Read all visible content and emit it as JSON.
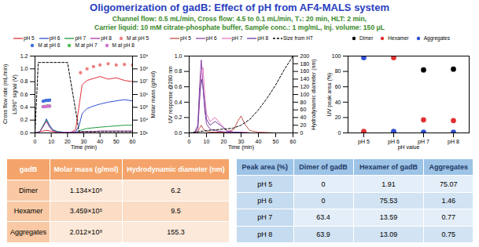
{
  "title": "Oligomerization of gadB: Effect of pH from AF4-MALS system",
  "subtitle": [
    "Channel flow: 0.5 mL/min, Cross flow: 4.5 to 0.1 mL/min, T₁: 20 min, HLT: 2 min,",
    "Carrier liquid: 10 mM citrate-phosphate buffer, Sample conc.: 1 mg/mL, Inj. volume: 150 μL"
  ],
  "chart_data": [
    {
      "type": "line",
      "xlabel": "Time (min)",
      "ylabels": [
        "Cross flow rate (mL/min)",
        "LS90° signal (V)"
      ],
      "y2label": "Molar mass (g/mol)",
      "xlim": [
        0,
        60
      ],
      "xticks": [
        0,
        10,
        20,
        30,
        40,
        50,
        60
      ],
      "ylim": [
        0,
        1.2
      ],
      "yticks": [
        {
          "value": 0,
          "label": "0.0"
        },
        0.2,
        0.4,
        0.6,
        0.8,
        {
          "value": 1,
          "label": "1.0"
        },
        1.2
      ],
      "y2lim": [
        1000,
        1000000000
      ],
      "y2ticks": [
        {
          "value": 1000,
          "label": "10³"
        },
        {
          "value": 10000,
          "label": "10⁴"
        },
        {
          "value": 100000,
          "label": "10⁵"
        },
        {
          "value": 1000000,
          "label": "10⁶"
        },
        {
          "value": 10000000,
          "label": "10⁷"
        },
        {
          "value": 100000000,
          "label": "10⁸"
        },
        {
          "value": 1000000000,
          "label": "10⁹"
        }
      ],
      "log": "y2",
      "legend": "top",
      "series": [
        {
          "name": "pH 5",
          "color": "#e0303a",
          "type": "line",
          "x": [
            0,
            3,
            5,
            7,
            9,
            11,
            14,
            18,
            22,
            25,
            27,
            29,
            32,
            36,
            40,
            45,
            50,
            55,
            60
          ],
          "values": [
            0,
            0.02,
            0.03,
            0.04,
            0.03,
            0.02,
            0.01,
            0.01,
            0.01,
            0.05,
            0.4,
            0.75,
            0.82,
            0.85,
            0.88,
            0.84,
            0.86,
            0.82,
            0.8
          ]
        },
        {
          "name": "pH 6",
          "color": "#2f4fd0",
          "type": "line",
          "x": [
            0,
            3,
            5,
            7,
            9,
            11,
            14,
            18,
            22,
            25,
            27,
            29,
            32,
            36,
            40,
            45,
            50,
            55,
            60
          ],
          "values": [
            0,
            0.02,
            0.1,
            0.22,
            0.12,
            0.05,
            0.02,
            0.01,
            0.01,
            0.02,
            0.1,
            0.3,
            0.38,
            0.42,
            0.45,
            0.48,
            0.5,
            0.52,
            0.5
          ]
        },
        {
          "name": "pH 7",
          "color": "#1f9a3f",
          "type": "line",
          "x": [
            0,
            3,
            5,
            7,
            9,
            11,
            14,
            18,
            22,
            25,
            27,
            29,
            32,
            36,
            40,
            45,
            50,
            55,
            60
          ],
          "values": [
            0,
            0.02,
            0.12,
            0.2,
            0.1,
            0.04,
            0.02,
            0.01,
            0.01,
            0.01,
            0.03,
            0.05,
            0.07,
            0.08,
            0.09,
            0.1,
            0.11,
            0.12,
            0.12
          ]
        },
        {
          "name": "pH 8",
          "color": "#b030b0",
          "type": "line",
          "x": [
            0,
            3,
            5,
            7,
            9,
            11,
            14,
            18,
            22,
            25,
            27,
            29,
            32,
            36,
            40,
            45,
            50,
            55,
            60
          ],
          "values": [
            0,
            0.02,
            0.1,
            0.18,
            0.09,
            0.03,
            0.01,
            0.01,
            0.01,
            0.01,
            0.01,
            0.02,
            0.02,
            0.02,
            0.03,
            0.03,
            0.03,
            0.03,
            0.03
          ]
        },
        {
          "color": "#000000",
          "type": "line",
          "line_style": "dashed",
          "x": [
            0,
            2,
            20,
            22,
            24,
            26,
            27,
            60
          ],
          "values": [
            0,
            1.1,
            1.1,
            0.8,
            0.5,
            0.2,
            0.02,
            0.02
          ]
        },
        {
          "name": "M at pH 5",
          "color": "#f08080",
          "type": "scatter",
          "marker": "circle",
          "axis": "y2",
          "x": [
            28,
            32,
            36,
            40,
            45,
            50,
            55,
            60
          ],
          "values": [
            50000000,
            100000000,
            150000000,
            200000000,
            250000000,
            200000000,
            220000000,
            200000000
          ]
        },
        {
          "name": "M at pH 6",
          "color": "#3f6fe0",
          "type": "scatter",
          "marker": "circle",
          "axis": "y2",
          "x": [
            5,
            6,
            7,
            8,
            9
          ],
          "values": [
            300000,
            320000,
            350000,
            340000,
            360000
          ]
        },
        {
          "name": "M at pH 7",
          "color": "#50c050",
          "type": "scatter",
          "marker": "circle",
          "axis": "y2",
          "x": [
            5,
            6,
            7,
            8,
            9
          ],
          "values": [
            110000,
            120000,
            115000,
            130000,
            120000
          ]
        },
        {
          "name": "M at pH 8",
          "color": "#d070d0",
          "type": "scatter",
          "marker": "circle",
          "axis": "y2",
          "x": [
            5,
            6,
            7,
            8,
            9
          ],
          "values": [
            110000,
            110000,
            120000,
            120000,
            125000
          ]
        }
      ]
    },
    {
      "type": "line",
      "xlabel": "Time (min)",
      "ylabels": [
        "UV response @280 nm"
      ],
      "y2label": "Hydrodynamic diameter (nm)",
      "xlim": [
        0,
        60
      ],
      "xticks": [
        0,
        10,
        20,
        30,
        40,
        50,
        60
      ],
      "ylim": [
        0,
        1
      ],
      "yticks": [
        {
          "value": 0,
          "label": "0.0"
        },
        0.2,
        0.4,
        0.6,
        0.8,
        {
          "value": 1,
          "label": "1.0"
        }
      ],
      "y2lim": [
        0,
        200
      ],
      "y2ticks": [
        0,
        20,
        40,
        60,
        80,
        100,
        120,
        140,
        160,
        180,
        200
      ],
      "legend": "top",
      "series": [
        {
          "name": "pH 5",
          "color": "#c0504d",
          "type": "line",
          "x": [
            0,
            3,
            5,
            6,
            7,
            8,
            9,
            10,
            12,
            15,
            18,
            22,
            26,
            28,
            30,
            32,
            35,
            40,
            50,
            60
          ],
          "values": [
            0,
            0,
            0.02,
            0.06,
            0.1,
            0.06,
            0.03,
            0.02,
            0.01,
            0.01,
            0.01,
            0.01,
            0.05,
            0.15,
            0.22,
            0.12,
            0.03,
            0.01,
            0,
            0
          ]
        },
        {
          "name": "pH 6",
          "color": "#8e44ad",
          "type": "line",
          "x": [
            0,
            3,
            5,
            6,
            7,
            8,
            9,
            10,
            12,
            15,
            18,
            22,
            26,
            28,
            30,
            32,
            35,
            40,
            50,
            60
          ],
          "values": [
            0,
            0,
            0.1,
            0.6,
            0.95,
            0.6,
            0.3,
            0.12,
            0.05,
            0.03,
            0.02,
            0.01,
            0.01,
            0.01,
            0.01,
            0.01,
            0,
            0,
            0,
            0
          ]
        },
        {
          "name": "pH 7",
          "color": "#e377c2",
          "type": "line",
          "x": [
            0,
            3,
            5,
            6,
            7,
            8,
            9,
            10,
            12,
            15,
            18,
            22,
            26,
            28,
            30,
            32,
            35,
            40,
            50,
            60
          ],
          "values": [
            0,
            0,
            0.05,
            0.4,
            0.8,
            0.85,
            0.5,
            0.25,
            0.15,
            0.2,
            0.12,
            0.03,
            0.01,
            0.01,
            0.01,
            0.01,
            0,
            0,
            0,
            0
          ]
        },
        {
          "name": "pH 8",
          "color": "#6a3d9a",
          "type": "line",
          "x": [
            0,
            3,
            5,
            6,
            7,
            8,
            9,
            10,
            12,
            15,
            18,
            22,
            26,
            28,
            30,
            32,
            35,
            40,
            50,
            60
          ],
          "values": [
            0,
            0,
            0.06,
            0.45,
            0.7,
            0.6,
            0.35,
            0.18,
            0.1,
            0.15,
            0.1,
            0.02,
            0.01,
            0.01,
            0.01,
            0,
            0,
            0,
            0,
            0
          ]
        },
        {
          "name": "Size from HT",
          "color": "#000000",
          "type": "line",
          "line_style": "dashed",
          "axis": "y2",
          "x": [
            0,
            5,
            10,
            15,
            20,
            25,
            30,
            35,
            40,
            45,
            50,
            55,
            60
          ],
          "values": [
            0,
            3,
            6,
            8,
            10,
            12,
            20,
            35,
            60,
            90,
            125,
            165,
            200
          ]
        }
      ]
    },
    {
      "type": "scatter",
      "xlabel": "pH value",
      "ylabels": [
        "UV peak area (%)"
      ],
      "categories": [
        "pH 5",
        "pH 6",
        "pH 7",
        "pH 8"
      ],
      "ylim": [
        0,
        100
      ],
      "yticks": [
        0,
        20,
        40,
        60,
        80,
        100
      ],
      "legend": "top",
      "series": [
        {
          "name": "Dimer",
          "color": "#000000",
          "marker": "circle",
          "values": [
            0,
            0,
            82,
            83
          ]
        },
        {
          "name": "Hexamer",
          "color": "#e03030",
          "marker": "circle",
          "values": [
            2,
            98,
            17,
            16
          ]
        },
        {
          "name": "Aggregates",
          "color": "#2f4fd0",
          "marker": "circle",
          "values": [
            98,
            2,
            1,
            1
          ]
        }
      ]
    }
  ],
  "tables": [
    {
      "header": [
        "gadB",
        "Molar mass (g/mol)",
        "Hydrodynamic diameter (nm)"
      ],
      "rows": [
        [
          "Dimer",
          "1.134×10⁵",
          "6.2"
        ],
        [
          "Hexamer",
          "3.459×10⁵",
          "9.5"
        ],
        [
          "Aggregates",
          "2.012×10⁸",
          "155.3"
        ]
      ]
    },
    {
      "header": [
        "Peak area (%)",
        "Dimer of gadB",
        "Hexamer of gadB",
        "Aggregates"
      ],
      "rows": [
        [
          "pH 5",
          "0",
          "1.91",
          "75.07"
        ],
        [
          "pH 6",
          "0",
          "75.53",
          "1.46"
        ],
        [
          "pH 7",
          "63.4",
          "13.59",
          "0.77"
        ],
        [
          "pH 8",
          "63.9",
          "13.09",
          "0.75"
        ]
      ]
    }
  ]
}
